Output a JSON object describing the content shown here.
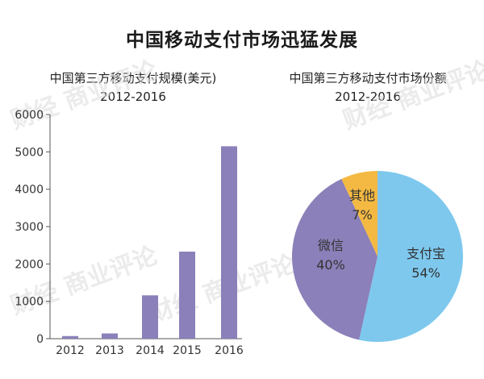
{
  "title": "中国移动支付市场迅猛发展",
  "watermark": "财经 商业评论",
  "chart_data": [
    {
      "type": "bar",
      "title": "中国第三方移动支付规模(美元)",
      "subtitle": "2012-2016",
      "categories": [
        "2012",
        "2013",
        "2014",
        "2015",
        "2016"
      ],
      "values": [
        70,
        140,
        1160,
        2330,
        5150
      ],
      "ylim": [
        0,
        6000
      ],
      "yticks": [
        0,
        1000,
        2000,
        3000,
        4000,
        5000,
        6000
      ],
      "xlabel": "",
      "ylabel": "",
      "grid": false,
      "color": "#8b80b9"
    },
    {
      "type": "pie",
      "title": "中国第三方移动支付市场份额",
      "subtitle": "2012-2016",
      "slices": [
        {
          "label": "支付宝",
          "value": 54,
          "display": "54%",
          "color": "#7ec8ee"
        },
        {
          "label": "微信",
          "value": 40,
          "display": "40%",
          "color": "#8b80b9"
        },
        {
          "label": "其他",
          "value": 7,
          "display": "7%",
          "color": "#f4b942"
        }
      ]
    }
  ]
}
